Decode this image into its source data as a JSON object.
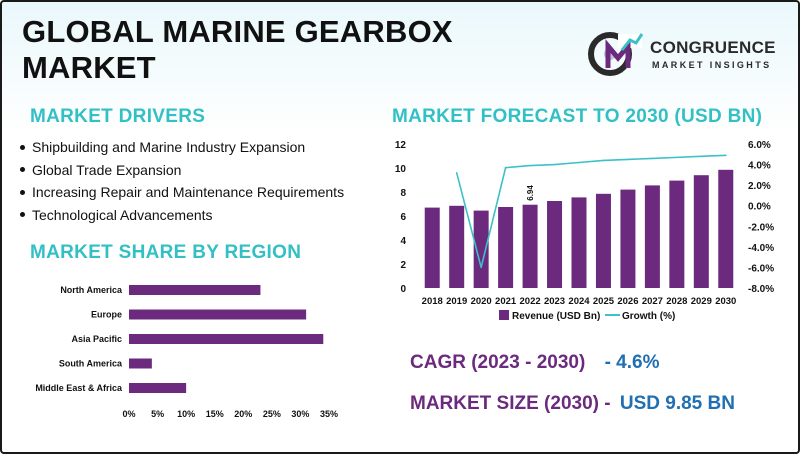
{
  "title": "GLOBAL MARINE GEARBOX MARKET",
  "logo": {
    "name": "CONGRUENCE",
    "tagline": "MARKET INSIGHTS",
    "monogram": "CM"
  },
  "drivers": {
    "heading": "MARKET DRIVERS",
    "items": [
      "Shipbuilding and Marine Industry Expansion",
      "Global Trade Expansion",
      "Increasing Repair and Maintenance Requirements",
      "Technological Advancements"
    ]
  },
  "forecast_heading": "MARKET FORECAST TO 2030 (USD BN)",
  "share_heading": "MARKET SHARE BY REGION",
  "cagr": {
    "label": "CAGR (2023 - 2030)",
    "value": "- 4.6%"
  },
  "market_size": {
    "label": "MARKET SIZE (2030) -",
    "value": "USD 9.85 BN"
  },
  "colors": {
    "bar": "#6b2a7e",
    "line": "#3cc1c8",
    "accent": "#33c0c4",
    "value": "#1f6fb2"
  },
  "chart_data": [
    {
      "type": "bar",
      "categories": [
        "2018",
        "2019",
        "2020",
        "2021",
        "2022",
        "2023",
        "2024",
        "2025",
        "2026",
        "2027",
        "2028",
        "2029",
        "2030"
      ],
      "series": [
        {
          "name": "Revenue (USD Bn)",
          "type": "bar",
          "axis": "left",
          "values": [
            6.7,
            6.85,
            6.45,
            6.75,
            6.94,
            7.25,
            7.55,
            7.85,
            8.2,
            8.55,
            8.95,
            9.4,
            9.85
          ]
        },
        {
          "name": "Growth (%)",
          "type": "line",
          "axis": "right",
          "values": [
            null,
            3.2,
            -6.0,
            3.7,
            3.9,
            4.0,
            4.2,
            4.4,
            4.5,
            4.6,
            4.7,
            4.8,
            4.9
          ]
        }
      ],
      "data_labels": [
        {
          "category": "2022",
          "text": "6.94"
        }
      ],
      "y_left": {
        "ticks": [
          "0",
          "2",
          "4",
          "6",
          "8",
          "10",
          "12"
        ],
        "range": [
          0,
          12
        ]
      },
      "y_right": {
        "ticks": [
          "6.0%",
          "4.0%",
          "2.0%",
          "0.0%",
          "-2.0%",
          "-4.0%",
          "-6.0%",
          "-8.0%"
        ],
        "range": [
          -8,
          6
        ]
      },
      "legend": {
        "position": "bottom",
        "entries": [
          "Revenue (USD Bn)",
          "Growth (%)"
        ]
      }
    },
    {
      "type": "bar",
      "orientation": "horizontal",
      "categories": [
        "North America",
        "Europe",
        "Asia Pacific",
        "South America",
        "Middle East & Africa"
      ],
      "values": [
        23,
        31,
        34,
        4,
        10
      ],
      "x_ticks": [
        "0%",
        "5%",
        "10%",
        "15%",
        "20%",
        "25%",
        "30%",
        "35%"
      ],
      "xlim": [
        0,
        35
      ]
    }
  ]
}
